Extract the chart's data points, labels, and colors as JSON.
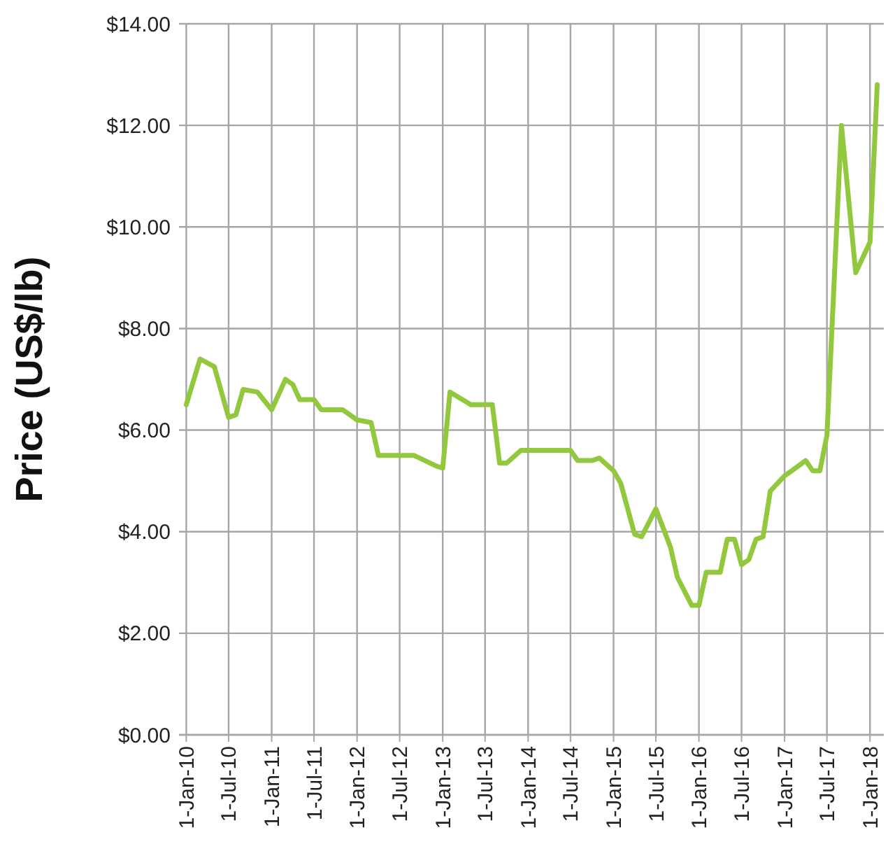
{
  "chart_data": {
    "type": "line",
    "ylabel": "Price (US$/lb)",
    "x": [
      "2010-01",
      "2010-03",
      "2010-05",
      "2010-07",
      "2010-08",
      "2010-09",
      "2010-11",
      "2011-01",
      "2011-03",
      "2011-04",
      "2011-05",
      "2011-07",
      "2011-08",
      "2011-11",
      "2012-01",
      "2012-03",
      "2012-04",
      "2012-09",
      "2012-12",
      "2013-01",
      "2013-02",
      "2013-05",
      "2013-08",
      "2013-09",
      "2013-10",
      "2013-12",
      "2014-07",
      "2014-08",
      "2014-10",
      "2014-11",
      "2015-01",
      "2015-02",
      "2015-04",
      "2015-05",
      "2015-07",
      "2015-09",
      "2015-10",
      "2015-12",
      "2016-01",
      "2016-02",
      "2016-04",
      "2016-05",
      "2016-06",
      "2016-07",
      "2016-08",
      "2016-09",
      "2016-10",
      "2016-11",
      "2017-01",
      "2017-02",
      "2017-04",
      "2017-05",
      "2017-06",
      "2017-07",
      "2017-09",
      "2017-11",
      "2018-01",
      "2018-02"
    ],
    "series": [
      {
        "color": "#92c83e",
        "values": [
          6.5,
          7.4,
          7.25,
          6.25,
          6.3,
          6.8,
          6.75,
          6.4,
          7.0,
          6.9,
          6.6,
          6.6,
          6.4,
          6.4,
          6.2,
          6.15,
          5.5,
          5.5,
          5.3,
          5.25,
          6.75,
          6.5,
          6.5,
          5.35,
          5.35,
          5.6,
          5.6,
          5.4,
          5.4,
          5.45,
          5.2,
          4.95,
          3.95,
          3.9,
          4.45,
          3.7,
          3.1,
          2.55,
          2.55,
          3.2,
          3.2,
          3.85,
          3.85,
          3.35,
          3.45,
          3.85,
          3.9,
          4.8,
          5.1,
          5.2,
          5.4,
          5.2,
          5.2,
          5.9,
          12.0,
          9.1,
          9.7,
          12.8
        ]
      }
    ],
    "xlim": [
      "2009-12-01",
      "2018-03-01"
    ],
    "xticks": [
      {
        "value": "2010-01",
        "label": "1-Jan-10"
      },
      {
        "value": "2010-07",
        "label": "1-Jul-10"
      },
      {
        "value": "2011-01",
        "label": "1-Jan-11"
      },
      {
        "value": "2011-07",
        "label": "1-Jul-11"
      },
      {
        "value": "2012-01",
        "label": "1-Jan-12"
      },
      {
        "value": "2012-07",
        "label": "1-Jul-12"
      },
      {
        "value": "2013-01",
        "label": "1-Jan-13"
      },
      {
        "value": "2013-07",
        "label": "1-Jul-13"
      },
      {
        "value": "2014-01",
        "label": "1-Jan-14"
      },
      {
        "value": "2014-07",
        "label": "1-Jul-14"
      },
      {
        "value": "2015-01",
        "label": "1-Jan-15"
      },
      {
        "value": "2015-07",
        "label": "1-Jul-15"
      },
      {
        "value": "2016-01",
        "label": "1-Jan-16"
      },
      {
        "value": "2016-07",
        "label": "1-Jul-16"
      },
      {
        "value": "2017-01",
        "label": "1-Jan-17"
      },
      {
        "value": "2017-07",
        "label": "1-Jul-17"
      },
      {
        "value": "2018-01",
        "label": "1-Jan-18"
      }
    ],
    "ylim": [
      0,
      14
    ],
    "yticks": [
      {
        "value": 0,
        "label": "$0.00"
      },
      {
        "value": 2,
        "label": "$2.00"
      },
      {
        "value": 4,
        "label": "$4.00"
      },
      {
        "value": 6,
        "label": "$6.00"
      },
      {
        "value": 8,
        "label": "$8.00"
      },
      {
        "value": 10,
        "label": "$10.00"
      },
      {
        "value": 12,
        "label": "$12.00"
      },
      {
        "value": 14,
        "label": "$14.00"
      }
    ],
    "grid": true
  }
}
